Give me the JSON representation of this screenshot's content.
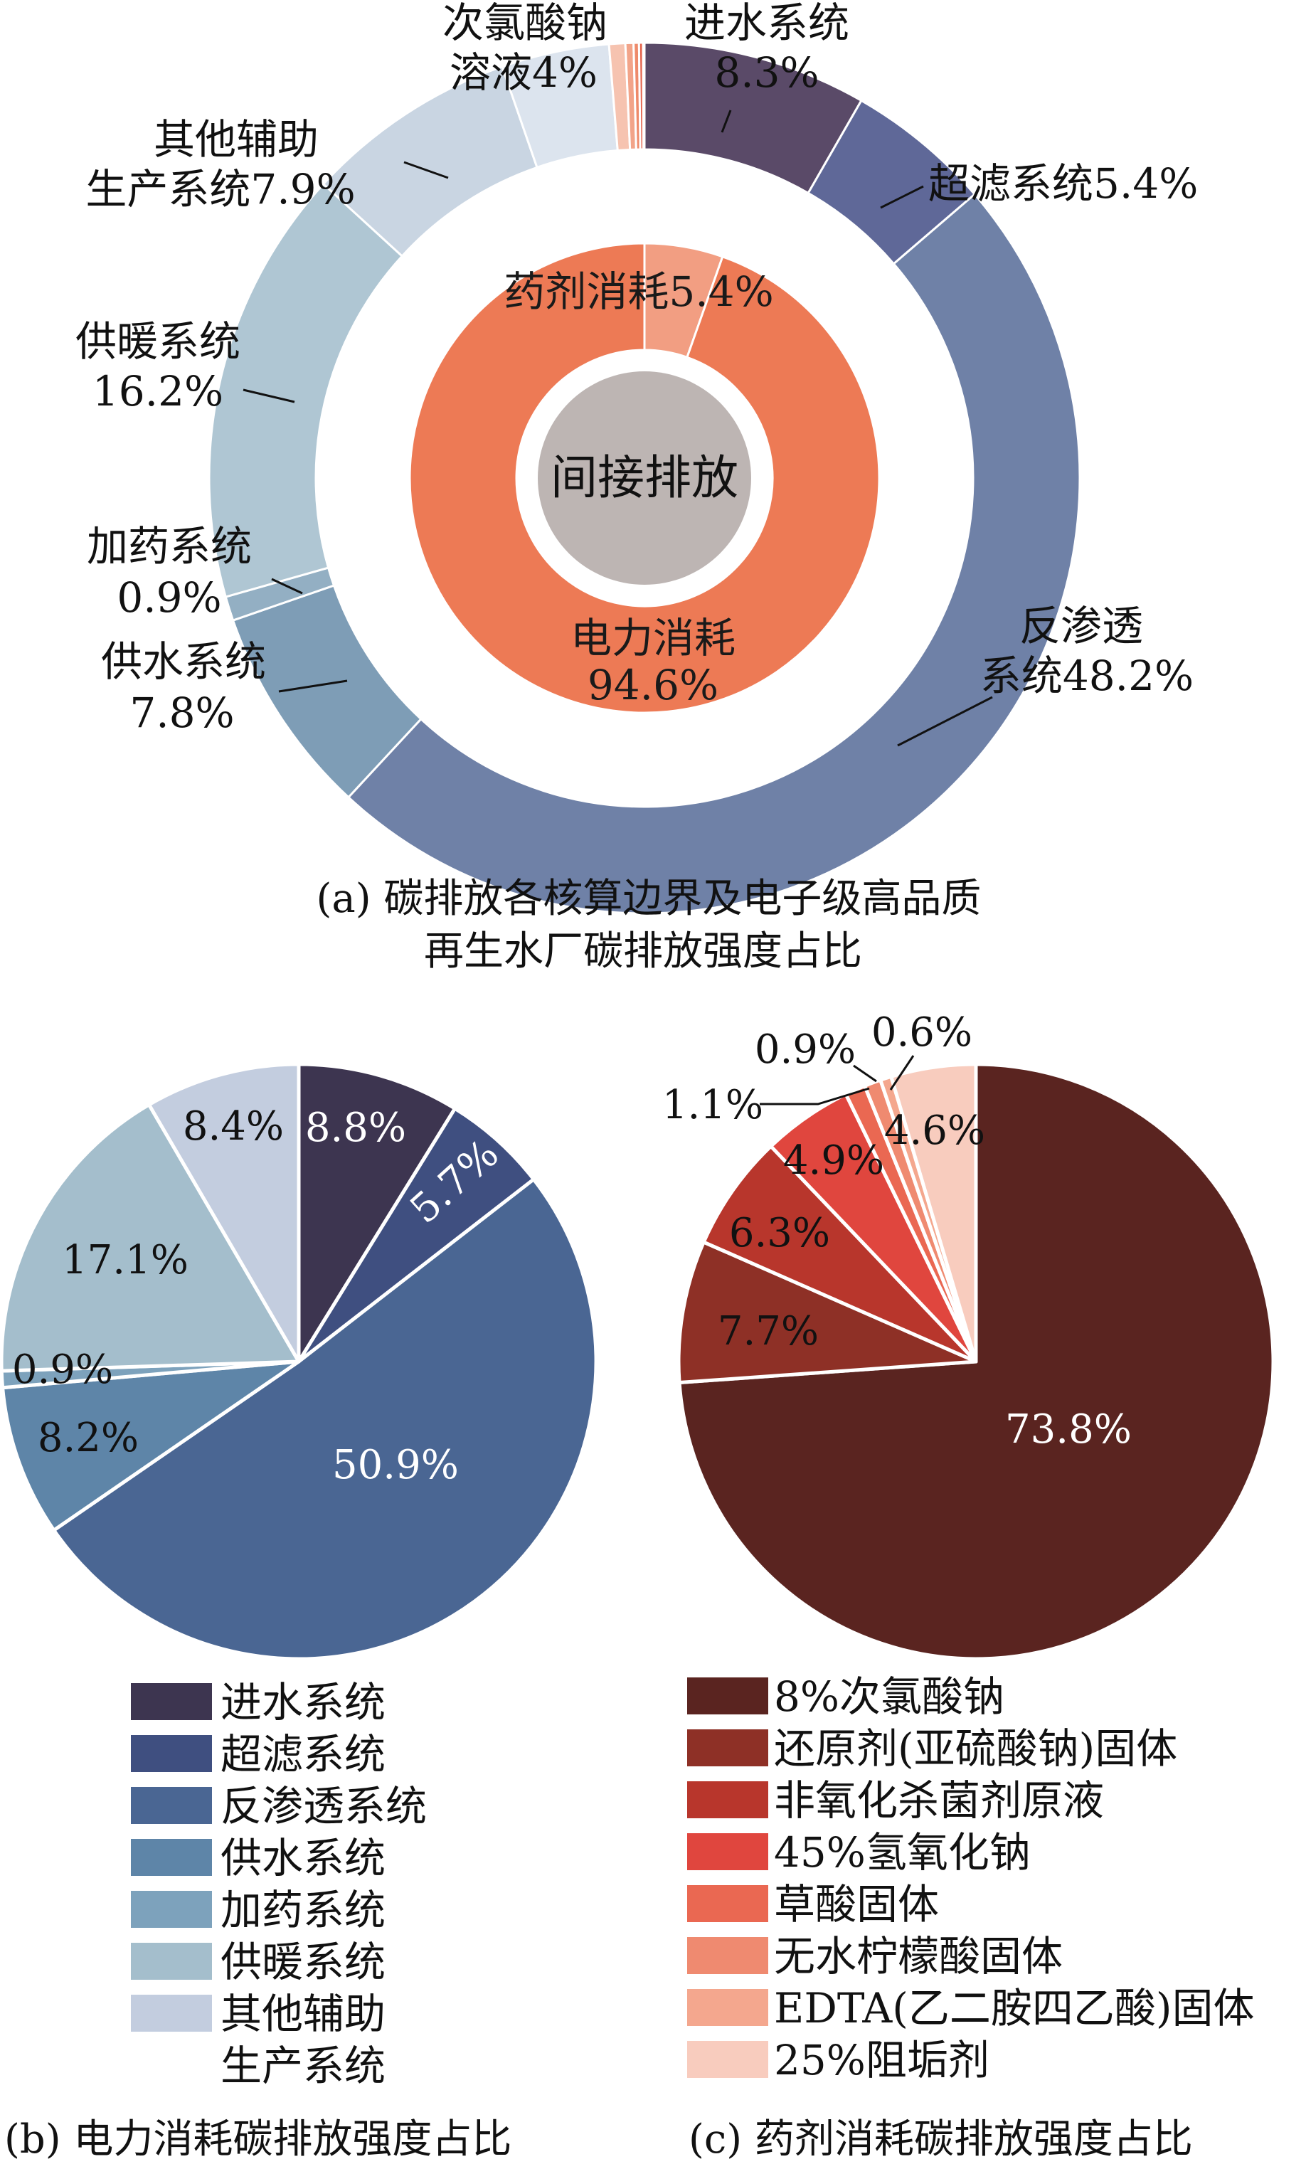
{
  "chart_data": [
    {
      "type": "pie",
      "subtype": "donut-sunburst",
      "center_label": "间接排放",
      "inner_ring": [
        {
          "label": "电力消耗",
          "value": 94.6,
          "display": "94.6%",
          "color": "#ED7A55"
        },
        {
          "label": "药剂消耗",
          "value": 5.4,
          "display": "5.4%",
          "color": "#F29E82"
        }
      ],
      "outer_ring": [
        {
          "label": "进水系统",
          "value": 8.3,
          "display": "8.3%",
          "color": "#5A4A68"
        },
        {
          "label": "超滤系统",
          "value": 5.4,
          "display": "5.4%",
          "color": "#5F6898"
        },
        {
          "label": "反渗透系统",
          "value": 48.2,
          "display": "48.2%",
          "color": "#6F81A7"
        },
        {
          "label": "供水系统",
          "value": 7.8,
          "display": "7.8%",
          "color": "#7E9DB6"
        },
        {
          "label": "加药系统",
          "value": 0.9,
          "display": "0.9%",
          "color": "#93AFC3"
        },
        {
          "label": "供暖系统",
          "value": 16.2,
          "display": "16.2%",
          "color": "#AFC6D3"
        },
        {
          "label": "其他辅助生产系统",
          "value": 7.9,
          "display": "7.9%",
          "color": "#C9D5E2"
        },
        {
          "label": "次氯酸钠溶液",
          "value": 4,
          "display": "4%",
          "color": "#DCE4EE"
        },
        {
          "label": "",
          "value": 0.6,
          "color": "#F6C3B0"
        },
        {
          "label": "",
          "value": 0.3,
          "color": "#F2A489"
        },
        {
          "label": "",
          "value": 0.2,
          "color": "#EE8A6A"
        },
        {
          "label": "",
          "value": 0.15,
          "color": "#E4624A"
        },
        {
          "label": "",
          "value": 0.05,
          "color": "#B53A30"
        }
      ],
      "caption": [
        "(a)  碳排放各核算边界及电子级高品质",
        "再生水厂碳排放强度占比"
      ]
    },
    {
      "type": "pie",
      "slices": [
        {
          "label": "进水系统",
          "value": 8.8,
          "display": "8.8%",
          "color": "#3D3550"
        },
        {
          "label": "超滤系统",
          "value": 5.7,
          "display": "5.7%",
          "color": "#3F4F80"
        },
        {
          "label": "反渗透系统",
          "value": 50.9,
          "display": "50.9%",
          "color": "#4A6693"
        },
        {
          "label": "供水系统",
          "value": 8.2,
          "display": "8.2%",
          "color": "#5E85A8"
        },
        {
          "label": "加药系统",
          "value": 0.9,
          "display": "0.9%",
          "color": "#7DA2BC"
        },
        {
          "label": "供暖系统",
          "value": 17.1,
          "display": "17.1%",
          "color": "#A4BECC"
        },
        {
          "label": "其他辅助生产系统",
          "value": 8.4,
          "display": "8.4%",
          "color": "#C3CDDF"
        }
      ],
      "legend": [
        "进水系统",
        "超滤系统",
        "反渗透系统",
        "供水系统",
        "加药系统",
        "供暖系统",
        "其他辅助生产系统"
      ],
      "legend_lines": [
        [
          "进水系统"
        ],
        [
          "超滤系统"
        ],
        [
          "反渗透系统"
        ],
        [
          "供水系统"
        ],
        [
          "加药系统"
        ],
        [
          "供暖系统"
        ],
        [
          "其他辅助",
          "生产系统"
        ]
      ],
      "caption": "(b)  电力消耗碳排放强度占比"
    },
    {
      "type": "pie",
      "slices": [
        {
          "label": "8%次氯酸钠",
          "value": 73.8,
          "display": "73.8%",
          "color": "#5A2420"
        },
        {
          "label": "还原剂(亚硫酸钠)固体",
          "value": 7.7,
          "display": "7.7%",
          "color": "#8E3026"
        },
        {
          "label": "非氧化杀菌剂原液",
          "value": 6.3,
          "display": "6.3%",
          "color": "#B8362C"
        },
        {
          "label": "45%氢氧化钠",
          "value": 4.9,
          "display": "4.9%",
          "color": "#E0463E"
        },
        {
          "label": "草酸固体",
          "value": 1.1,
          "display": "1.1%",
          "color": "#EA6852"
        },
        {
          "label": "无水柠檬酸固体",
          "value": 0.9,
          "display": "0.9%",
          "color": "#EF8A70"
        },
        {
          "label": "EDTA(乙二胺四乙酸)固体",
          "value": 0.6,
          "display": "0.6%",
          "color": "#F4A78E"
        },
        {
          "label": "25%阻垢剂",
          "value": 4.6,
          "display": "4.6%",
          "color": "#F8CCBE"
        }
      ],
      "legend": [
        "8%次氯酸钠",
        "还原剂(亚硫酸钠)固体",
        "非氧化杀菌剂原液",
        "45%氢氧化钠",
        "草酸固体",
        "无水柠檬酸固体",
        "EDTA(乙二胺四乙酸)固体",
        "25%阻垢剂"
      ],
      "caption": "(c)  药剂消耗碳排放强度占比"
    }
  ]
}
